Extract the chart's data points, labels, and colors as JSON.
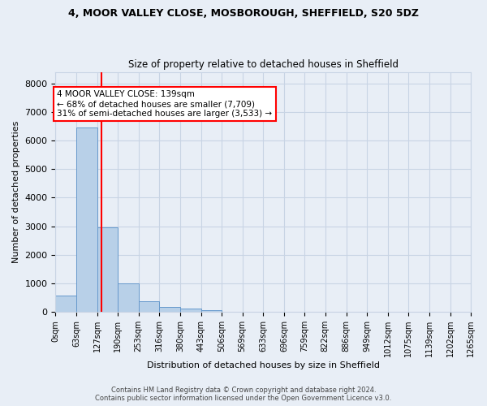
{
  "title1": "4, MOOR VALLEY CLOSE, MOSBOROUGH, SHEFFIELD, S20 5DZ",
  "title2": "Size of property relative to detached houses in Sheffield",
  "xlabel": "Distribution of detached houses by size in Sheffield",
  "ylabel": "Number of detached properties",
  "bar_values": [
    580,
    6450,
    2950,
    1000,
    380,
    170,
    110,
    60,
    15,
    5,
    3,
    2,
    1,
    1,
    0,
    0,
    0,
    0,
    0,
    0
  ],
  "bin_edges": [
    0,
    63,
    127,
    190,
    253,
    316,
    380,
    443,
    506,
    569,
    633,
    696,
    759,
    822,
    886,
    949,
    1012,
    1075,
    1139,
    1202,
    1265
  ],
  "bar_color": "#b8d0e8",
  "bar_edge_color": "#6699cc",
  "grid_color": "#c8d4e4",
  "background_color": "#e8eef6",
  "red_line_x": 139,
  "annotation_text": "4 MOOR VALLEY CLOSE: 139sqm\n← 68% of detached houses are smaller (7,709)\n31% of semi-detached houses are larger (3,533) →",
  "annotation_box_color": "white",
  "annotation_border_color": "red",
  "ylim": [
    0,
    8400
  ],
  "yticks": [
    0,
    1000,
    2000,
    3000,
    4000,
    5000,
    6000,
    7000,
    8000
  ],
  "footer1": "Contains HM Land Registry data © Crown copyright and database right 2024.",
  "footer2": "Contains public sector information licensed under the Open Government Licence v3.0.",
  "tick_labels": [
    "0sqm",
    "63sqm",
    "127sqm",
    "190sqm",
    "253sqm",
    "316sqm",
    "380sqm",
    "443sqm",
    "506sqm",
    "569sqm",
    "633sqm",
    "696sqm",
    "759sqm",
    "822sqm",
    "886sqm",
    "949sqm",
    "1012sqm",
    "1075sqm",
    "1139sqm",
    "1202sqm",
    "1265sqm"
  ],
  "title1_fontsize": 9,
  "title2_fontsize": 8.5,
  "ylabel_fontsize": 8,
  "xlabel_fontsize": 8,
  "ytick_fontsize": 8,
  "xtick_fontsize": 7
}
